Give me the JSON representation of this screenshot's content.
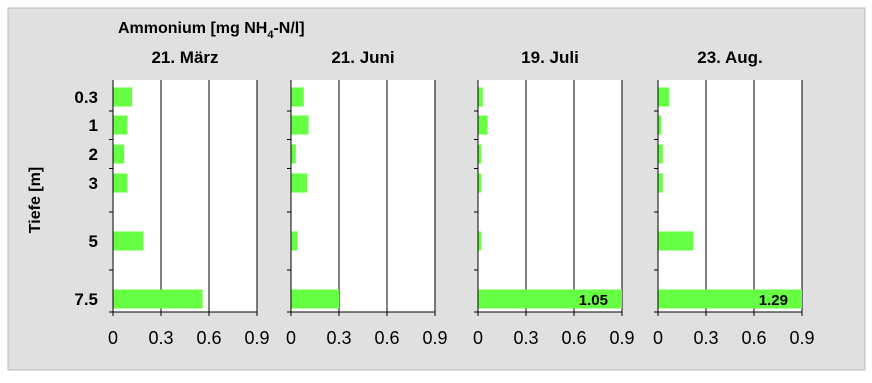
{
  "figure": {
    "title_prefix": "Ammonium [mg NH",
    "title_subscript": "4",
    "title_suffix": "-N/l]",
    "ylabel": "Tiefe [m]",
    "background_color": "#e0e0e0",
    "plot_background_color": "#ffffff",
    "bar_color": "#66ff44"
  },
  "chart_data": [
    {
      "type": "bar",
      "orientation": "horizontal",
      "title": "21. März",
      "depth_labels": [
        "0.3",
        "1",
        "2",
        "3",
        "5",
        "7.5"
      ],
      "values": [
        0.12,
        0.09,
        0.07,
        0.09,
        0.19,
        0.56
      ],
      "value_labels": [
        "",
        "",
        "",
        "",
        "",
        ""
      ],
      "xticks": [
        "0",
        "0.3",
        "0.6",
        "0.9"
      ],
      "xlim": [
        0,
        0.9
      ],
      "grid": true
    },
    {
      "type": "bar",
      "orientation": "horizontal",
      "title": "21. Juni",
      "depth_labels": [
        "0.3",
        "1",
        "2",
        "3",
        "5",
        "7.5"
      ],
      "values": [
        0.08,
        0.11,
        0.03,
        0.1,
        0.04,
        0.3
      ],
      "value_labels": [
        "",
        "",
        "",
        "",
        "",
        ""
      ],
      "xticks": [
        "0",
        "0.3",
        "0.6",
        "0.9"
      ],
      "xlim": [
        0,
        0.9
      ],
      "grid": true
    },
    {
      "type": "bar",
      "orientation": "horizontal",
      "title": "19. Juli",
      "depth_labels": [
        "0.3",
        "1",
        "2",
        "3",
        "5",
        "7.5"
      ],
      "values": [
        0.03,
        0.06,
        0.02,
        0.02,
        0.02,
        1.05
      ],
      "value_labels": [
        "",
        "",
        "",
        "",
        "",
        "1.05"
      ],
      "xticks": [
        "0",
        "0.3",
        "0.6",
        "0.9"
      ],
      "xlim": [
        0,
        0.9
      ],
      "grid": true
    },
    {
      "type": "bar",
      "orientation": "horizontal",
      "title": "23. Aug.",
      "depth_labels": [
        "0.3",
        "1",
        "2",
        "3",
        "5",
        "7.5"
      ],
      "values": [
        0.07,
        0.02,
        0.03,
        0.03,
        0.22,
        1.29
      ],
      "value_labels": [
        "",
        "",
        "",
        "",
        "",
        "1.29"
      ],
      "xticks": [
        "0",
        "0.3",
        "0.6",
        "0.9"
      ],
      "xlim": [
        0,
        0.9
      ],
      "grid": true
    }
  ]
}
